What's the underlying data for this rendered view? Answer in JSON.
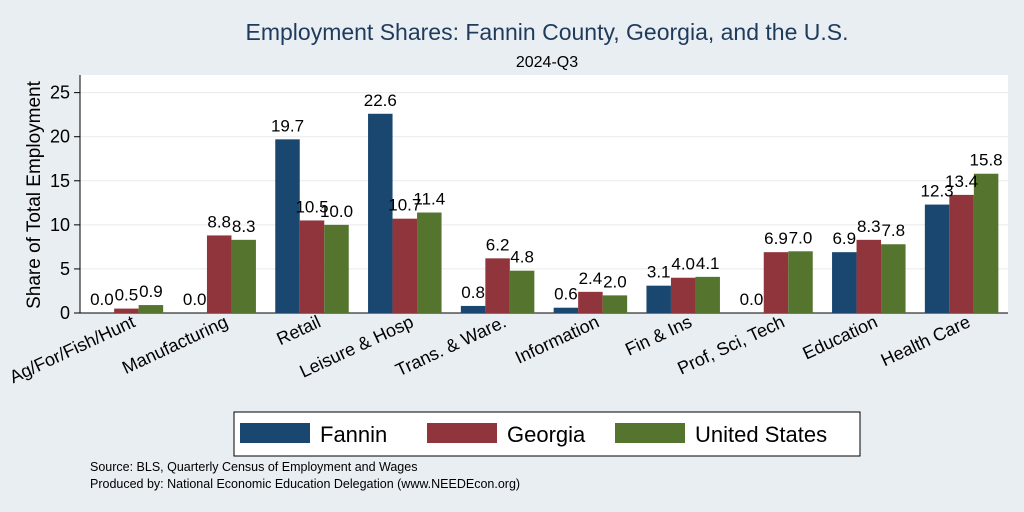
{
  "chart_data": {
    "type": "bar",
    "title": "Employment Shares: Fannin County, Georgia, and the U.S.",
    "subtitle": "2024-Q3",
    "ylabel": "Share of Total Employment",
    "xlabel": "",
    "ylim": [
      0,
      27
    ],
    "yticks": [
      0,
      5,
      10,
      15,
      20,
      25
    ],
    "grid": true,
    "legend_position": "bottom",
    "categories": [
      "Ag/For/Fish/Hunt",
      "Manufacturing",
      "Retail",
      "Leisure & Hosp",
      "Trans. & Ware.",
      "Information",
      "Fin & Ins",
      "Prof, Sci, Tech",
      "Education",
      "Health Care"
    ],
    "series": [
      {
        "name": "Fannin",
        "color": "#1a476f",
        "values": [
          0.0,
          0.0,
          19.7,
          22.6,
          0.8,
          0.6,
          3.1,
          0.0,
          6.9,
          12.3
        ]
      },
      {
        "name": "Georgia",
        "color": "#90353b",
        "values": [
          0.5,
          8.8,
          10.5,
          10.7,
          6.2,
          2.4,
          4.0,
          6.9,
          8.3,
          13.4
        ]
      },
      {
        "name": "United States",
        "color": "#55752f",
        "values": [
          0.9,
          8.3,
          10.0,
          11.4,
          4.8,
          2.0,
          4.1,
          7.0,
          7.8,
          15.8
        ]
      }
    ],
    "notes": [
      "Source: BLS, Quarterly Census of Employment and Wages",
      "Produced by: National Economic Education Delegation (www.NEEDEcon.org)"
    ]
  }
}
